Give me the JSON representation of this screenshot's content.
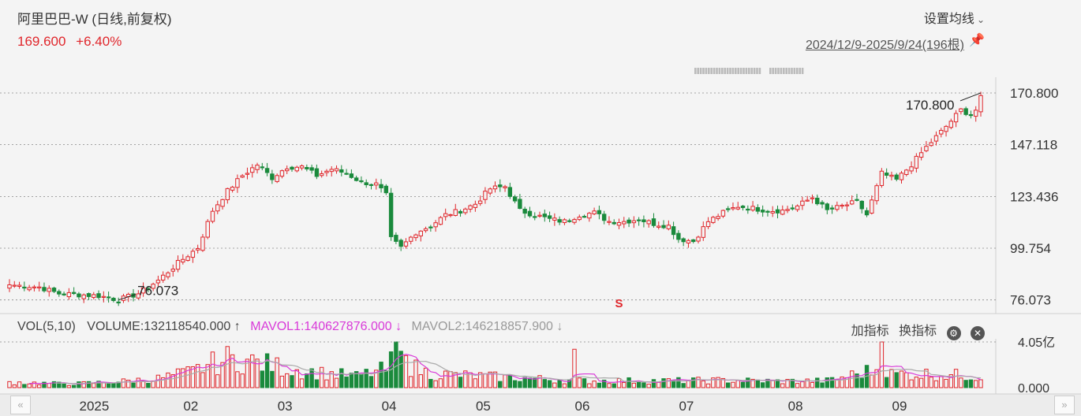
{
  "header": {
    "title": "阿里巴巴-W (日线,前复权)",
    "last_price": "169.600",
    "change_pct": "+6.40%",
    "ma_settings_label": "设置均线",
    "chevron_glyph": "⌄",
    "range_label": "2024/12/9-2025/9/24(196根)",
    "pin_glyph": "📌"
  },
  "volume_panel": {
    "label": "VOL(5,10)",
    "volume": "VOLUME:132118540.000",
    "volume_arrow": "↑",
    "mavol1": "MAVOL1:140627876.000",
    "mavol1_arrow": "↓",
    "mavol2": "MAVOL2:146218857.900",
    "mavol2_arrow": "↓",
    "add_indicator": "加指标",
    "switch_indicator": "换指标",
    "gear_glyph": "⚙",
    "close_glyph": "✕"
  },
  "navigation": {
    "left_glyph": "«",
    "right_glyph": "»"
  },
  "chart_data": {
    "type": "candlestick",
    "price_axis": {
      "ticks": [
        "170.800",
        "147.118",
        "123.436",
        "99.754",
        "76.073"
      ],
      "range": [
        72.0,
        178.0
      ]
    },
    "volume_axis": {
      "ticks": [
        "4.05亿",
        "0.000"
      ],
      "range": [
        0,
        405000000
      ]
    },
    "x_ticks": [
      {
        "label": "2025",
        "index": 16
      },
      {
        "label": "02",
        "index": 37
      },
      {
        "label": "03",
        "index": 56
      },
      {
        "label": "04",
        "index": 77
      },
      {
        "label": "05",
        "index": 96
      },
      {
        "label": "06",
        "index": 116
      },
      {
        "label": "07",
        "index": 137
      },
      {
        "label": "08",
        "index": 159
      },
      {
        "label": "09",
        "index": 180
      }
    ],
    "annotations": {
      "high_label": "170.800",
      "low_label": "76.073",
      "event_marker": "S"
    },
    "anchors": [
      [
        0,
        83
      ],
      [
        6,
        82
      ],
      [
        10,
        79
      ],
      [
        18,
        78
      ],
      [
        22,
        76.1
      ],
      [
        26,
        79
      ],
      [
        30,
        85
      ],
      [
        34,
        93
      ],
      [
        38,
        100
      ],
      [
        41,
        117
      ],
      [
        44,
        126
      ],
      [
        47,
        133
      ],
      [
        50,
        138
      ],
      [
        53,
        132
      ],
      [
        56,
        137
      ],
      [
        59,
        137
      ],
      [
        62,
        133
      ],
      [
        65,
        136
      ],
      [
        68,
        134
      ],
      [
        71,
        130
      ],
      [
        74,
        129
      ],
      [
        76,
        124
      ],
      [
        77,
        104
      ],
      [
        79,
        100
      ],
      [
        82,
        107
      ],
      [
        85,
        110
      ],
      [
        88,
        115
      ],
      [
        91,
        117
      ],
      [
        94,
        120
      ],
      [
        97,
        127
      ],
      [
        100,
        128
      ],
      [
        103,
        117
      ],
      [
        106,
        115
      ],
      [
        109,
        113
      ],
      [
        112,
        112
      ],
      [
        115,
        115
      ],
      [
        118,
        116
      ],
      [
        121,
        112
      ],
      [
        124,
        112
      ],
      [
        127,
        113
      ],
      [
        130,
        111
      ],
      [
        133,
        110
      ],
      [
        135,
        104
      ],
      [
        138,
        103
      ],
      [
        141,
        112
      ],
      [
        144,
        116
      ],
      [
        147,
        119
      ],
      [
        150,
        118
      ],
      [
        153,
        117
      ],
      [
        156,
        117
      ],
      [
        159,
        119
      ],
      [
        162,
        123
      ],
      [
        165,
        117
      ],
      [
        168,
        119
      ],
      [
        171,
        121
      ],
      [
        173,
        115
      ],
      [
        176,
        134
      ],
      [
        179,
        131
      ],
      [
        182,
        138
      ],
      [
        185,
        146
      ],
      [
        188,
        153
      ],
      [
        190,
        158
      ],
      [
        192,
        163
      ],
      [
        194,
        161
      ],
      [
        195,
        163
      ],
      [
        196,
        169.6
      ]
    ],
    "volume_anchors": [
      [
        0,
        0.12
      ],
      [
        12,
        0.08
      ],
      [
        22,
        0.13
      ],
      [
        30,
        0.2
      ],
      [
        37,
        0.35
      ],
      [
        40,
        0.5
      ],
      [
        45,
        0.62
      ],
      [
        50,
        0.55
      ],
      [
        56,
        0.42
      ],
      [
        62,
        0.33
      ],
      [
        70,
        0.25
      ],
      [
        76,
        0.4
      ],
      [
        78,
        0.68
      ],
      [
        80,
        0.5
      ],
      [
        85,
        0.3
      ],
      [
        95,
        0.25
      ],
      [
        105,
        0.2
      ],
      [
        115,
        0.15
      ],
      [
        125,
        0.15
      ],
      [
        135,
        0.15
      ],
      [
        145,
        0.16
      ],
      [
        155,
        0.14
      ],
      [
        165,
        0.15
      ],
      [
        175,
        0.4
      ],
      [
        178,
        0.3
      ],
      [
        185,
        0.3
      ],
      [
        196,
        0.25
      ]
    ],
    "volume_spikes": [
      [
        78,
        1.0
      ],
      [
        176,
        1.0
      ],
      [
        44,
        0.9
      ],
      [
        114,
        0.84
      ],
      [
        80,
        0.7
      ]
    ]
  }
}
